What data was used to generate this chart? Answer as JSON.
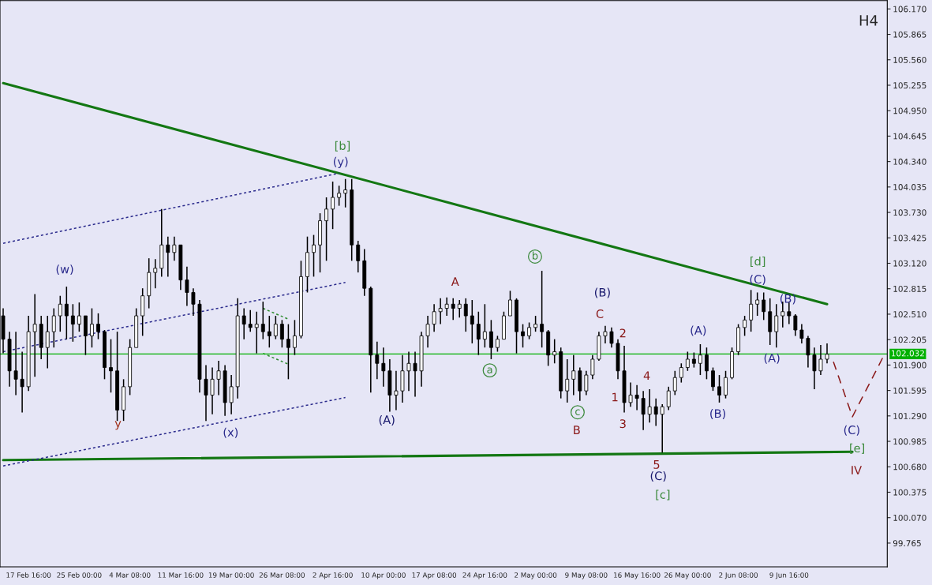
{
  "chart_data": {
    "type": "candlestick",
    "title": "H4",
    "color": "#000000",
    "categories": [
      null,
      null,
      null,
      null,
      "17 Feb 16:00",
      null,
      null,
      null,
      null,
      null,
      null,
      null,
      "25 Feb 00:00",
      null,
      null,
      null,
      null,
      null,
      null,
      null,
      "4 Mar 08:00",
      null,
      null,
      null,
      null,
      null,
      null,
      null,
      "11 Mar 16:00",
      null,
      null,
      null,
      null,
      null,
      null,
      null,
      "19 Mar 00:00",
      null,
      null,
      null,
      null,
      null,
      null,
      null,
      "26 Mar 08:00",
      null,
      null,
      null,
      null,
      null,
      null,
      null,
      "2 Apr 16:00",
      null,
      null,
      null,
      null,
      null,
      null,
      null,
      "10 Apr 00:00",
      null,
      null,
      null,
      null,
      null,
      null,
      null,
      "17 Apr 08:00",
      null,
      null,
      null,
      null,
      null,
      null,
      null,
      "24 Apr 16:00",
      null,
      null,
      null,
      null,
      null,
      null,
      null,
      "2 May 00:00",
      null,
      null,
      null,
      null,
      null,
      null,
      null,
      "9 May 08:00",
      null,
      null,
      null,
      null,
      null,
      null,
      null,
      "16 May 16:00",
      null,
      null,
      null,
      null,
      null,
      null,
      null,
      "26 May 00:00",
      null,
      null,
      null,
      null,
      null,
      null,
      null,
      "2 Jun 08:00",
      null,
      null,
      null,
      null,
      null,
      null,
      null,
      "9 Jun 16:00",
      null,
      null,
      null,
      null,
      null,
      null,
      null,
      null,
      null,
      null,
      null,
      null,
      null,
      null,
      null
    ],
    "ohlc": [
      [
        102.49,
        102.58,
        102.04,
        102.21
      ],
      [
        102.21,
        102.3,
        101.64,
        101.83
      ],
      [
        101.83,
        102.3,
        101.54,
        101.73
      ],
      [
        101.73,
        102.06,
        101.33,
        101.64
      ],
      [
        101.64,
        102.49,
        101.59,
        102.3
      ],
      [
        102.3,
        102.75,
        101.76,
        102.39
      ],
      [
        102.39,
        102.49,
        101.97,
        102.11
      ],
      [
        102.11,
        102.49,
        101.86,
        102.3
      ],
      [
        102.3,
        102.58,
        102.11,
        102.49
      ],
      [
        102.49,
        102.73,
        102.3,
        102.63
      ],
      [
        102.63,
        102.84,
        102.21,
        102.49
      ],
      [
        102.49,
        102.63,
        102.18,
        102.39
      ],
      [
        102.39,
        102.65,
        102.3,
        102.49
      ],
      [
        102.49,
        102.49,
        102.02,
        102.25
      ],
      [
        102.25,
        102.58,
        102.11,
        102.39
      ],
      [
        102.39,
        102.52,
        102.21,
        102.3
      ],
      [
        102.3,
        102.32,
        101.73,
        101.87
      ],
      [
        101.87,
        102.21,
        101.57,
        101.83
      ],
      [
        101.83,
        102.3,
        101.23,
        101.36
      ],
      [
        101.36,
        101.73,
        101.23,
        101.64
      ],
      [
        101.64,
        102.21,
        101.54,
        102.11
      ],
      [
        102.11,
        102.58,
        102.11,
        102.49
      ],
      [
        102.49,
        102.82,
        102.25,
        102.73
      ],
      [
        102.73,
        103.18,
        102.58,
        103.01
      ],
      [
        103.01,
        103.17,
        102.82,
        103.06
      ],
      [
        103.06,
        103.77,
        102.96,
        103.34
      ],
      [
        103.34,
        103.44,
        102.96,
        103.25
      ],
      [
        103.25,
        103.44,
        103.15,
        103.34
      ],
      [
        103.34,
        103.34,
        102.8,
        102.92
      ],
      [
        102.92,
        103.08,
        102.61,
        102.77
      ],
      [
        102.77,
        102.82,
        102.49,
        102.63
      ],
      [
        102.63,
        102.68,
        101.57,
        101.73
      ],
      [
        101.73,
        101.9,
        101.23,
        101.54
      ],
      [
        101.54,
        101.87,
        101.31,
        101.73
      ],
      [
        101.73,
        101.95,
        101.54,
        101.83
      ],
      [
        101.83,
        101.9,
        101.29,
        101.45
      ],
      [
        101.45,
        101.78,
        101.31,
        101.64
      ],
      [
        101.64,
        102.7,
        101.5,
        102.49
      ],
      [
        102.49,
        102.58,
        102.21,
        102.39
      ],
      [
        102.39,
        102.56,
        102.3,
        102.35
      ],
      [
        102.35,
        102.54,
        102.04,
        102.39
      ],
      [
        102.39,
        102.66,
        102.21,
        102.3
      ],
      [
        102.3,
        102.49,
        102.11,
        102.25
      ],
      [
        102.25,
        102.49,
        102.21,
        102.39
      ],
      [
        102.39,
        102.44,
        102.11,
        102.21
      ],
      [
        102.21,
        102.39,
        101.73,
        102.11
      ],
      [
        102.11,
        102.44,
        102.02,
        102.25
      ],
      [
        102.25,
        103.15,
        102.22,
        102.96
      ],
      [
        102.96,
        103.44,
        102.77,
        103.25
      ],
      [
        103.25,
        103.46,
        102.96,
        103.34
      ],
      [
        103.34,
        103.72,
        103.01,
        103.63
      ],
      [
        103.63,
        103.91,
        103.15,
        103.77
      ],
      [
        103.77,
        104.1,
        103.53,
        103.91
      ],
      [
        103.91,
        104.05,
        103.81,
        103.96
      ],
      [
        103.96,
        104.13,
        103.79,
        104.0
      ],
      [
        104.0,
        104.13,
        103.15,
        103.34
      ],
      [
        103.34,
        103.39,
        103.01,
        103.15
      ],
      [
        103.15,
        103.29,
        102.73,
        102.82
      ],
      [
        102.82,
        102.84,
        101.57,
        102.02
      ],
      [
        102.02,
        102.18,
        101.73,
        101.92
      ],
      [
        101.92,
        102.11,
        101.64,
        101.83
      ],
      [
        101.83,
        101.97,
        101.34,
        101.54
      ],
      [
        101.54,
        101.83,
        101.36,
        101.59
      ],
      [
        101.59,
        102.02,
        101.45,
        101.83
      ],
      [
        101.83,
        102.06,
        101.59,
        101.92
      ],
      [
        101.92,
        102.06,
        101.52,
        101.83
      ],
      [
        101.83,
        102.3,
        101.64,
        102.25
      ],
      [
        102.25,
        102.49,
        102.11,
        102.39
      ],
      [
        102.39,
        102.63,
        102.3,
        102.54
      ],
      [
        102.54,
        102.7,
        102.39,
        102.58
      ],
      [
        102.58,
        102.71,
        102.49,
        102.63
      ],
      [
        102.63,
        102.7,
        102.44,
        102.58
      ],
      [
        102.58,
        102.68,
        102.47,
        102.63
      ],
      [
        102.63,
        102.7,
        102.3,
        102.49
      ],
      [
        102.49,
        102.68,
        102.16,
        102.39
      ],
      [
        102.39,
        102.54,
        102.02,
        102.21
      ],
      [
        102.21,
        102.63,
        102.11,
        102.3
      ],
      [
        102.3,
        102.44,
        101.97,
        102.11
      ],
      [
        102.11,
        102.25,
        102.06,
        102.21
      ],
      [
        102.21,
        102.54,
        102.21,
        102.49
      ],
      [
        102.49,
        102.79,
        102.49,
        102.68
      ],
      [
        102.68,
        102.7,
        102.04,
        102.3
      ],
      [
        102.3,
        102.39,
        102.11,
        102.25
      ],
      [
        102.25,
        102.41,
        102.21,
        102.35
      ],
      [
        102.35,
        102.49,
        102.3,
        102.39
      ],
      [
        102.39,
        103.03,
        102.11,
        102.3
      ],
      [
        102.3,
        102.32,
        101.89,
        102.02
      ],
      [
        102.02,
        102.21,
        101.92,
        102.06
      ],
      [
        102.06,
        102.11,
        101.5,
        101.59
      ],
      [
        101.59,
        101.97,
        101.45,
        101.73
      ],
      [
        101.73,
        102.02,
        101.54,
        101.83
      ],
      [
        101.83,
        101.87,
        101.47,
        101.59
      ],
      [
        101.59,
        101.83,
        101.54,
        101.78
      ],
      [
        101.78,
        102.02,
        101.73,
        101.97
      ],
      [
        101.97,
        102.3,
        101.95,
        102.25
      ],
      [
        102.25,
        102.37,
        102.16,
        102.3
      ],
      [
        102.3,
        102.35,
        102.11,
        102.16
      ],
      [
        102.16,
        102.21,
        101.73,
        101.83
      ],
      [
        101.83,
        102.13,
        101.33,
        101.45
      ],
      [
        101.45,
        101.69,
        101.4,
        101.54
      ],
      [
        101.54,
        101.66,
        101.36,
        101.5
      ],
      [
        101.5,
        101.59,
        101.12,
        101.31
      ],
      [
        101.31,
        101.61,
        101.21,
        101.4
      ],
      [
        101.4,
        101.5,
        101.17,
        101.31
      ],
      [
        101.31,
        101.43,
        100.85,
        101.4
      ],
      [
        101.4,
        101.64,
        101.36,
        101.59
      ],
      [
        101.59,
        101.83,
        101.54,
        101.75
      ],
      [
        101.75,
        101.92,
        101.69,
        101.87
      ],
      [
        101.87,
        102.06,
        101.83,
        101.97
      ],
      [
        101.97,
        102.05,
        101.87,
        101.92
      ],
      [
        101.92,
        102.15,
        101.78,
        102.02
      ],
      [
        102.02,
        102.11,
        101.73,
        101.83
      ],
      [
        101.83,
        101.87,
        101.59,
        101.64
      ],
      [
        101.64,
        101.78,
        101.45,
        101.54
      ],
      [
        101.54,
        101.83,
        101.5,
        101.75
      ],
      [
        101.75,
        102.11,
        101.73,
        102.06
      ],
      [
        102.06,
        102.39,
        102.02,
        102.35
      ],
      [
        102.35,
        102.49,
        102.25,
        102.44
      ],
      [
        102.44,
        102.8,
        102.3,
        102.63
      ],
      [
        102.63,
        102.77,
        102.49,
        102.68
      ],
      [
        102.68,
        102.77,
        102.44,
        102.54
      ],
      [
        102.54,
        102.7,
        102.14,
        102.3
      ],
      [
        102.3,
        102.63,
        102.11,
        102.49
      ],
      [
        102.49,
        102.66,
        102.35,
        102.54
      ],
      [
        102.54,
        102.65,
        102.39,
        102.49
      ],
      [
        102.49,
        102.51,
        102.25,
        102.32
      ],
      [
        102.32,
        102.39,
        102.16,
        102.22
      ],
      [
        102.22,
        102.25,
        101.87,
        102.02
      ],
      [
        102.02,
        102.11,
        101.61,
        101.83
      ],
      [
        101.83,
        102.14,
        101.78,
        101.97
      ],
      [
        101.97,
        102.16,
        101.92,
        102.03
      ],
      null,
      null,
      null,
      null,
      null,
      null,
      null,
      null,
      null
    ],
    "series": [
      {
        "type": "line",
        "color": "#137713",
        "line_style": "solid",
        "values": [
          105.28,
          null,
          null,
          null,
          null,
          null,
          null,
          null,
          null,
          null,
          null,
          null,
          null,
          null,
          null,
          null,
          null,
          null,
          null,
          null,
          null,
          null,
          null,
          null,
          null,
          null,
          null,
          null,
          null,
          null,
          null,
          null,
          null,
          null,
          null,
          null,
          null,
          null,
          null,
          null,
          null,
          null,
          null,
          null,
          null,
          null,
          null,
          null,
          null,
          null,
          null,
          null,
          null,
          null,
          null,
          null,
          null,
          null,
          null,
          null,
          null,
          null,
          null,
          null,
          null,
          null,
          null,
          null,
          null,
          null,
          null,
          null,
          null,
          null,
          null,
          null,
          null,
          null,
          null,
          null,
          null,
          null,
          null,
          null,
          null,
          null,
          null,
          null,
          null,
          null,
          null,
          null,
          null,
          null,
          null,
          null,
          null,
          null,
          null,
          null,
          null,
          null,
          null,
          null,
          null,
          null,
          null,
          null,
          null,
          null,
          null,
          null,
          null,
          null,
          null,
          null,
          null,
          null,
          null,
          null,
          null,
          null,
          null,
          null,
          null,
          null,
          null,
          null,
          null,
          null,
          102.63,
          null,
          null,
          null,
          null,
          null,
          null,
          null,
          null,
          null
        ]
      },
      {
        "type": "line",
        "color": "#137713",
        "line_style": "solid",
        "values": [
          100.76,
          null,
          null,
          null,
          null,
          null,
          null,
          null,
          null,
          null,
          null,
          null,
          null,
          null,
          null,
          null,
          null,
          null,
          null,
          null,
          null,
          null,
          null,
          null,
          null,
          null,
          null,
          null,
          null,
          null,
          null,
          null,
          null,
          null,
          null,
          null,
          null,
          null,
          null,
          null,
          null,
          null,
          null,
          null,
          null,
          null,
          null,
          null,
          null,
          null,
          null,
          null,
          null,
          null,
          null,
          null,
          null,
          null,
          null,
          null,
          null,
          null,
          null,
          null,
          null,
          null,
          null,
          null,
          null,
          null,
          null,
          null,
          null,
          null,
          null,
          null,
          null,
          null,
          null,
          null,
          null,
          null,
          null,
          null,
          null,
          null,
          null,
          null,
          null,
          null,
          null,
          null,
          null,
          null,
          null,
          null,
          null,
          null,
          null,
          null,
          null,
          null,
          null,
          null,
          null,
          null,
          null,
          null,
          null,
          null,
          null,
          null,
          null,
          null,
          null,
          null,
          null,
          null,
          null,
          null,
          null,
          null,
          null,
          null,
          null,
          null,
          null,
          null,
          null,
          null,
          null,
          null,
          null,
          null,
          100.86,
          null,
          null,
          null,
          null,
          null
        ]
      },
      {
        "type": "line",
        "color": "#2a2a8c",
        "line_style": "dotted",
        "values": [
          103.36,
          null,
          null,
          null,
          null,
          null,
          null,
          null,
          null,
          null,
          null,
          null,
          null,
          null,
          null,
          null,
          null,
          null,
          null,
          null,
          null,
          null,
          null,
          null,
          null,
          null,
          null,
          null,
          null,
          null,
          null,
          null,
          null,
          null,
          null,
          null,
          null,
          null,
          null,
          null,
          null,
          null,
          null,
          null,
          null,
          null,
          null,
          null,
          null,
          null,
          null,
          null,
          null,
          104.2,
          null,
          null,
          null,
          null,
          null,
          null,
          null,
          null,
          null,
          null,
          null,
          null,
          null,
          null,
          null,
          null,
          null,
          null,
          null,
          null,
          null,
          null,
          null,
          null,
          null,
          null,
          null,
          null,
          null,
          null,
          null,
          null,
          null,
          null,
          null,
          null,
          null,
          null,
          null,
          null,
          null,
          null,
          null,
          null,
          null,
          null,
          null,
          null,
          null,
          null,
          null,
          null,
          null,
          null,
          null,
          null,
          null,
          null,
          null,
          null,
          null,
          null,
          null,
          null,
          null,
          null,
          null,
          null,
          null,
          null,
          null,
          null,
          null,
          null,
          null,
          null,
          null,
          null,
          null,
          null,
          null,
          null,
          null,
          null,
          null,
          null
        ]
      },
      {
        "type": "line",
        "color": "#2a2a8c",
        "line_style": "dotted",
        "values": [
          102.06,
          null,
          null,
          null,
          null,
          null,
          null,
          null,
          null,
          null,
          null,
          null,
          null,
          null,
          null,
          null,
          null,
          null,
          null,
          null,
          null,
          null,
          null,
          null,
          null,
          null,
          null,
          null,
          null,
          null,
          null,
          null,
          null,
          null,
          null,
          null,
          null,
          null,
          null,
          null,
          null,
          null,
          null,
          null,
          null,
          null,
          null,
          null,
          null,
          null,
          null,
          null,
          null,
          null,
          102.89,
          null,
          null,
          null,
          null,
          null,
          null,
          null,
          null,
          null,
          null,
          null,
          null,
          null,
          null,
          null,
          null,
          null,
          null,
          null,
          null,
          null,
          null,
          null,
          null,
          null,
          null,
          null,
          null,
          null,
          null,
          null,
          null,
          null,
          null,
          null,
          null,
          null,
          null,
          null,
          null,
          null,
          null,
          null,
          null,
          null,
          null,
          null,
          null,
          null,
          null,
          null,
          null,
          null,
          null,
          null,
          null,
          null,
          null,
          null,
          null,
          null,
          null,
          null,
          null,
          null,
          null,
          null,
          null,
          null,
          null,
          null,
          null,
          null,
          null,
          null,
          null,
          null,
          null,
          null,
          null,
          null,
          null,
          null,
          null,
          null
        ]
      },
      {
        "type": "line",
        "color": "#2a2a8c",
        "line_style": "dotted",
        "values": [
          100.69,
          null,
          null,
          null,
          null,
          null,
          null,
          null,
          null,
          null,
          null,
          null,
          null,
          null,
          null,
          null,
          null,
          null,
          null,
          null,
          null,
          null,
          null,
          null,
          null,
          null,
          null,
          null,
          null,
          null,
          null,
          null,
          null,
          null,
          null,
          null,
          null,
          null,
          null,
          null,
          null,
          null,
          null,
          null,
          null,
          null,
          null,
          null,
          null,
          null,
          null,
          null,
          null,
          null,
          101.51,
          null,
          null,
          null,
          null,
          null,
          null,
          null,
          null,
          null,
          null,
          null,
          null,
          null,
          null,
          null,
          null,
          null,
          null,
          null,
          null,
          null,
          null,
          null,
          null,
          null,
          null,
          null,
          null,
          null,
          null,
          null,
          null,
          null,
          null,
          null,
          null,
          null,
          null,
          null,
          null,
          null,
          null,
          null,
          null,
          null,
          null,
          null,
          null,
          null,
          null,
          null,
          null,
          null,
          null,
          null,
          null,
          null,
          null,
          null,
          null,
          null,
          null,
          null,
          null,
          null,
          null,
          null,
          null,
          null,
          null,
          null,
          null,
          null,
          null,
          null,
          null,
          null,
          null,
          null,
          null,
          null,
          null,
          null,
          null,
          null
        ]
      },
      {
        "type": "line",
        "color": "#2e8b2e",
        "line_style": "dotted",
        "values": [
          null,
          null,
          null,
          null,
          null,
          null,
          null,
          null,
          null,
          null,
          null,
          null,
          null,
          null,
          null,
          null,
          null,
          null,
          null,
          null,
          null,
          null,
          null,
          null,
          null,
          null,
          null,
          null,
          null,
          null,
          null,
          null,
          null,
          null,
          null,
          null,
          null,
          null,
          null,
          null,
          null,
          102.58,
          null,
          null,
          null,
          102.45,
          null,
          null,
          null,
          null,
          null,
          null,
          null,
          null,
          null,
          null,
          null,
          null,
          null,
          null,
          null,
          null,
          null,
          null,
          null,
          null,
          null,
          null,
          null,
          null,
          null,
          null,
          null,
          null,
          null,
          null,
          null,
          null,
          null,
          null,
          null,
          null,
          null,
          null,
          null,
          null,
          null,
          null,
          null,
          null,
          null,
          null,
          null,
          null,
          null,
          null,
          null,
          null,
          null,
          null,
          null,
          null,
          null,
          null,
          null,
          null,
          null,
          null,
          null,
          null,
          null,
          null,
          null,
          null,
          null,
          null,
          null,
          null,
          null,
          null,
          null,
          null,
          null,
          null,
          null,
          null,
          null,
          null,
          null,
          null,
          null,
          null,
          null,
          null,
          null,
          null,
          null,
          null,
          null,
          null
        ]
      },
      {
        "type": "line",
        "color": "#2e8b2e",
        "line_style": "dotted",
        "values": [
          null,
          null,
          null,
          null,
          null,
          null,
          null,
          null,
          null,
          null,
          null,
          null,
          null,
          null,
          null,
          null,
          null,
          null,
          null,
          null,
          null,
          null,
          null,
          null,
          null,
          null,
          null,
          null,
          null,
          null,
          null,
          null,
          null,
          null,
          null,
          null,
          null,
          null,
          null,
          null,
          null,
          102.04,
          null,
          null,
          null,
          101.91,
          null,
          null,
          null,
          null,
          null,
          null,
          null,
          null,
          null,
          null,
          null,
          null,
          null,
          null,
          null,
          null,
          null,
          null,
          null,
          null,
          null,
          null,
          null,
          null,
          null,
          null,
          null,
          null,
          null,
          null,
          null,
          null,
          null,
          null,
          null,
          null,
          null,
          null,
          null,
          null,
          null,
          null,
          null,
          null,
          null,
          null,
          null,
          null,
          null,
          null,
          null,
          null,
          null,
          null,
          null,
          null,
          null,
          null,
          null,
          null,
          null,
          null,
          null,
          null,
          null,
          null,
          null,
          null,
          null,
          null,
          null,
          null,
          null,
          null,
          null,
          null,
          null,
          null,
          null,
          null,
          null,
          null,
          null,
          null,
          null,
          null,
          null,
          null,
          null,
          null,
          null,
          null,
          null,
          null
        ]
      },
      {
        "type": "line",
        "color": "#8b1a1a",
        "line_style": "dashed",
        "values": [
          null,
          null,
          null,
          null,
          null,
          null,
          null,
          null,
          null,
          null,
          null,
          null,
          null,
          null,
          null,
          null,
          null,
          null,
          null,
          null,
          null,
          null,
          null,
          null,
          null,
          null,
          null,
          null,
          null,
          null,
          null,
          null,
          null,
          null,
          null,
          null,
          null,
          null,
          null,
          null,
          null,
          null,
          null,
          null,
          null,
          null,
          null,
          null,
          null,
          null,
          null,
          null,
          null,
          null,
          null,
          null,
          null,
          null,
          null,
          null,
          null,
          null,
          null,
          null,
          null,
          null,
          null,
          null,
          null,
          null,
          null,
          null,
          null,
          null,
          null,
          null,
          null,
          null,
          null,
          null,
          null,
          null,
          null,
          null,
          null,
          null,
          null,
          null,
          null,
          null,
          null,
          null,
          null,
          null,
          null,
          null,
          null,
          null,
          null,
          null,
          null,
          null,
          null,
          null,
          null,
          null,
          null,
          null,
          null,
          null,
          null,
          null,
          null,
          null,
          null,
          null,
          null,
          null,
          null,
          null,
          null,
          null,
          null,
          null,
          null,
          null,
          null,
          null,
          null,
          null,
          null,
          101.94,
          null,
          null,
          101.28,
          null,
          null,
          null,
          null,
          102.02
        ]
      }
    ],
    "ref_lines": [
      {
        "axis": "y",
        "value": 102.032,
        "label": "102.032",
        "color": "#00b000"
      }
    ],
    "annotations": [
      "(w)",
      "y",
      "(x)",
      "[b]",
      "(y)",
      "(A)",
      "A",
      "b",
      "a",
      "c",
      "B",
      "(B)",
      "C",
      "2",
      "1",
      "3",
      "4",
      "5",
      "(C)",
      "[c]",
      "(A)",
      "(B)",
      "[d]",
      "(C)",
      "(B)",
      "(A)",
      "(C)",
      "[e]",
      "IV"
    ],
    "ylim": [
      99.48,
      106.27
    ],
    "yticks": [
      {
        "value": 99.765,
        "label": "99.765"
      },
      {
        "value": 100.07,
        "label": "100.070"
      },
      {
        "value": 100.375,
        "label": "100.375"
      },
      {
        "value": 100.68,
        "label": "100.680"
      },
      {
        "value": 100.985,
        "label": "100.985"
      },
      {
        "value": 101.29,
        "label": "101.290"
      },
      {
        "value": 101.595,
        "label": "101.595"
      },
      {
        "value": 101.9,
        "label": "101.900"
      },
      {
        "value": 102.205,
        "label": "102.205"
      },
      {
        "value": 102.51,
        "label": "102.510"
      },
      {
        "value": 102.815,
        "label": "102.815"
      },
      {
        "value": 103.12,
        "label": "103.120"
      },
      {
        "value": 103.425,
        "label": "103.425"
      },
      {
        "value": 103.73,
        "label": "103.730"
      },
      {
        "value": 104.035,
        "label": "104.035"
      },
      {
        "value": 104.34,
        "label": "104.340"
      },
      {
        "value": 104.645,
        "label": "104.645"
      },
      {
        "value": 104.95,
        "label": "104.950"
      },
      {
        "value": 105.255,
        "label": "105.255"
      },
      {
        "value": 105.56,
        "label": "105.560"
      },
      {
        "value": 105.865,
        "label": "105.865"
      },
      {
        "value": 106.17,
        "label": "106.170"
      }
    ]
  }
}
